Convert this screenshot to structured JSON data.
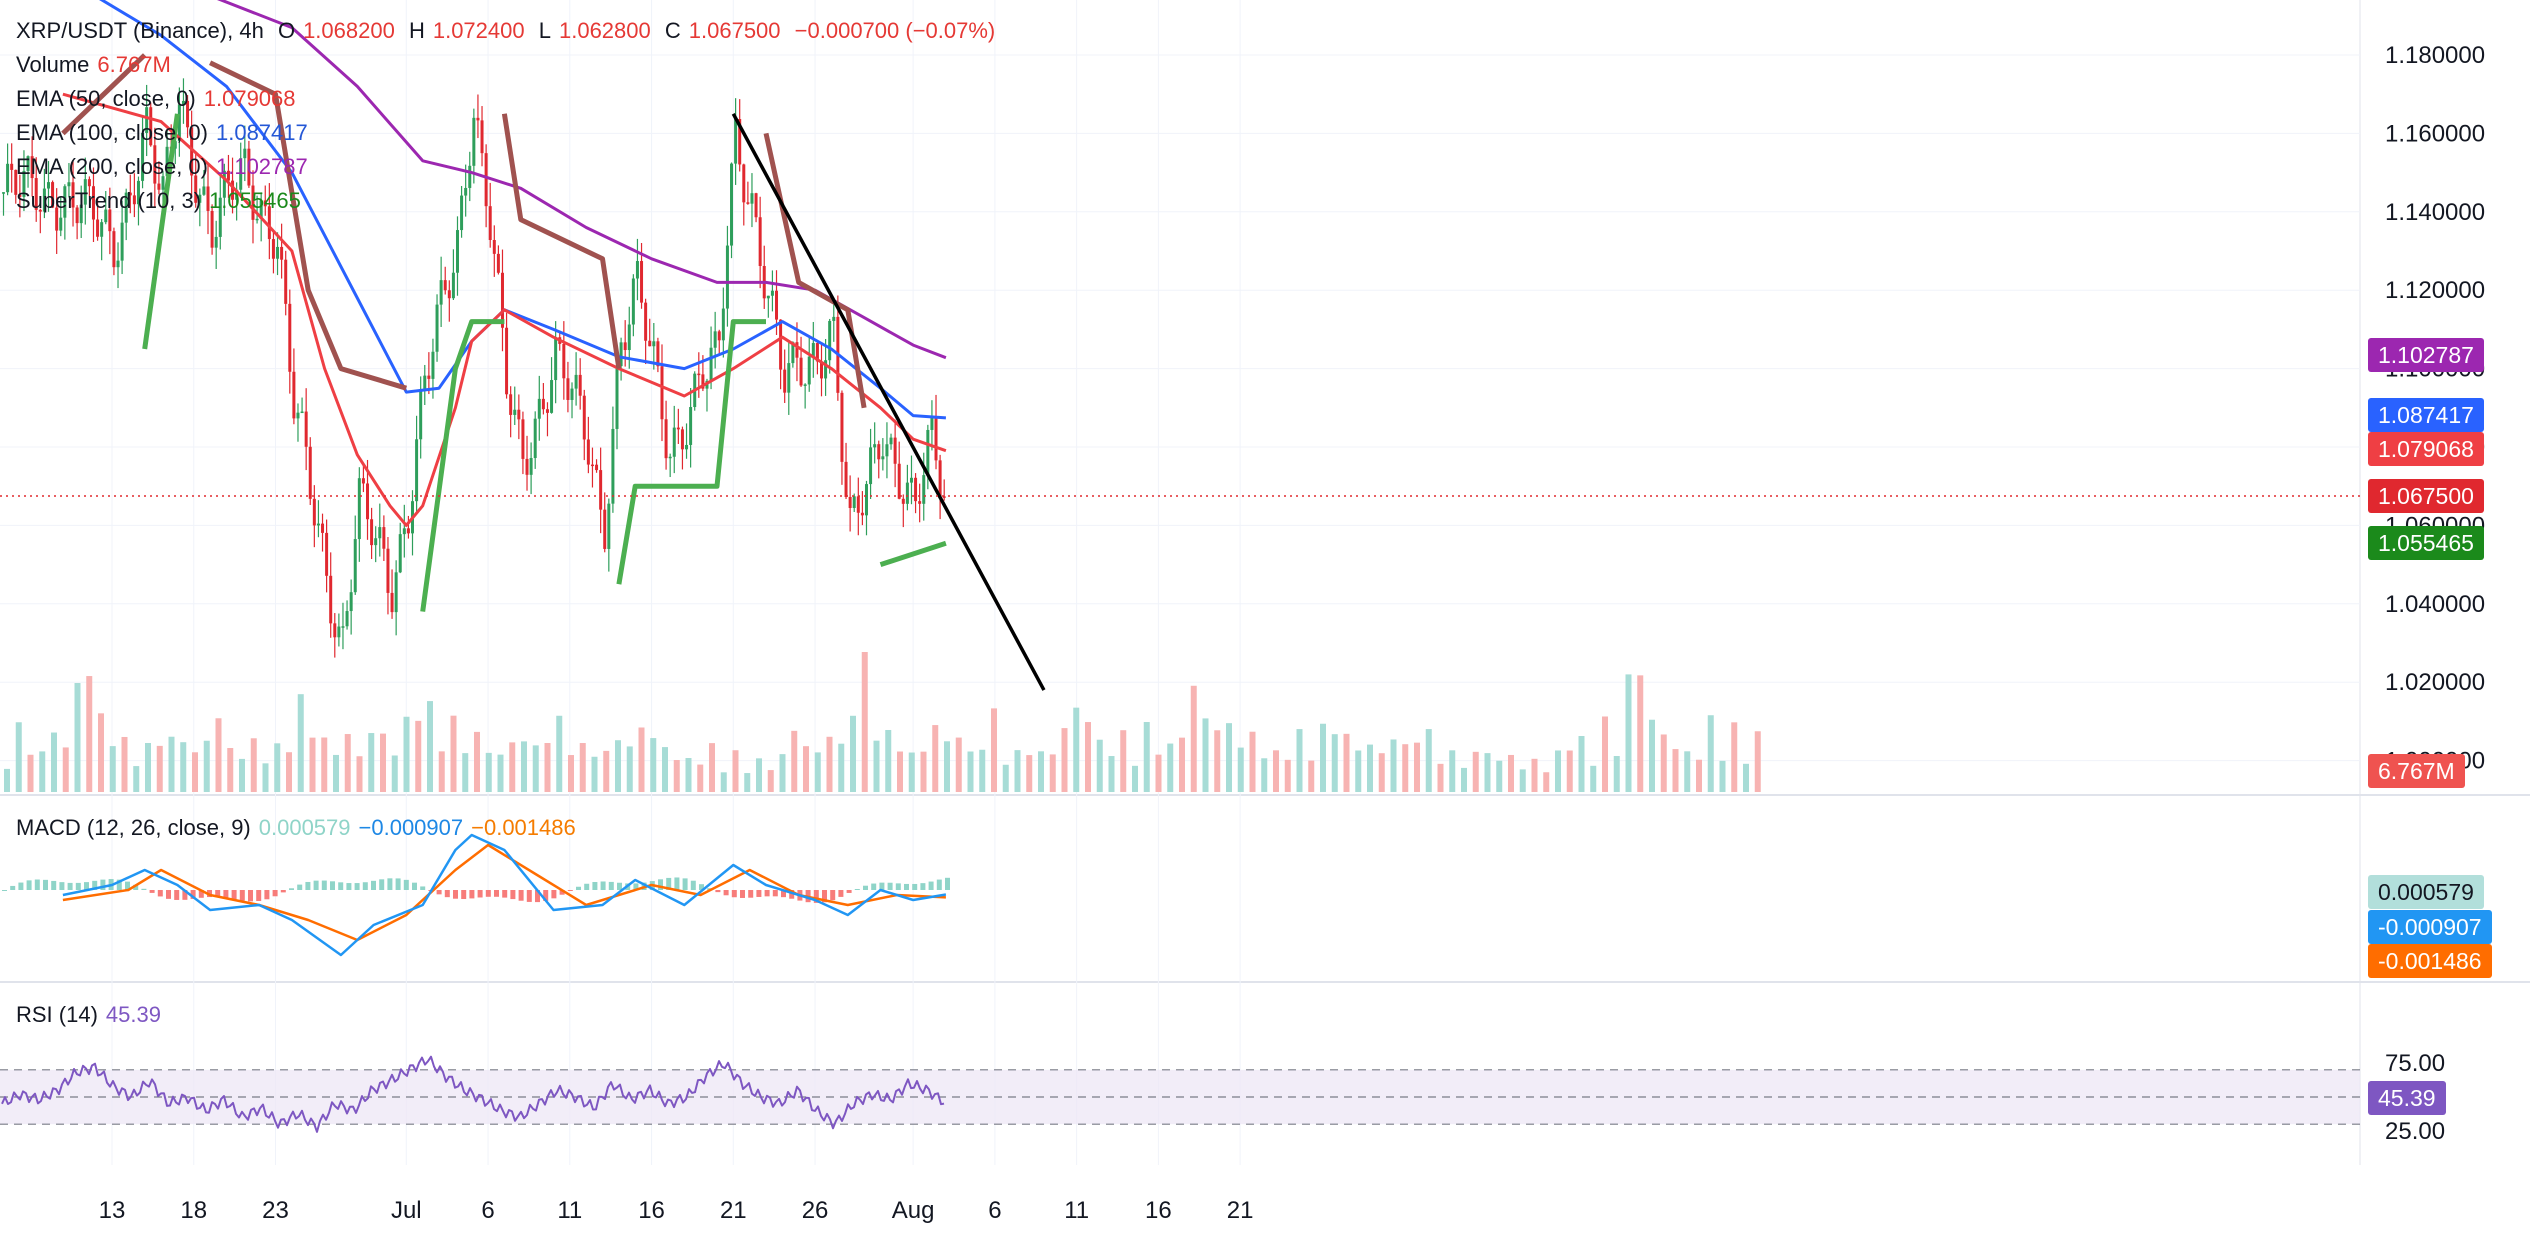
{
  "header": {
    "symbol": "XRP/USDT (Binance), 4h",
    "open_label": "O",
    "open": "1.068200",
    "high_label": "H",
    "high": "1.072400",
    "low_label": "L",
    "low": "1.062800",
    "close_label": "C",
    "close": "1.067500",
    "change": "−0.000700 (−0.07%)"
  },
  "indicators": {
    "volume": {
      "label": "Volume",
      "value": "6.767M"
    },
    "ema50": {
      "label": "EMA (50, close, 0)",
      "value": "1.079068"
    },
    "ema100": {
      "label": "EMA (100, close, 0)",
      "value": "1.087417"
    },
    "ema200": {
      "label": "EMA (200, close, 0)",
      "value": "1.102787"
    },
    "supertrend": {
      "label": "SuperTrend (10, 3)",
      "value": "1.055465"
    },
    "macd": {
      "label": "MACD (12, 26, close, 9)",
      "hist": "0.000579",
      "macd": "−0.000907",
      "signal": "−0.001486"
    },
    "rsi": {
      "label": "RSI (14)",
      "value": "45.39"
    }
  },
  "badges": {
    "ema200": "1.102787",
    "ema100": "1.087417",
    "ema50": "1.079068",
    "last": "1.067500",
    "supertrend": "1.055465",
    "volume": "6.767M",
    "macd_hist": "0.000579",
    "macd": "-0.000907",
    "signal": "-0.001486",
    "rsi": "45.39"
  },
  "colors": {
    "up": "#26a69a",
    "down": "#ef5350",
    "candle_up": "#2e9e5b",
    "candle_down": "#e0282f",
    "ema50": "#ef3f44",
    "ema100": "#2962ff",
    "ema200": "#9c27b0",
    "supertrend_up": "#4caf50",
    "supertrend_down": "#a0524f",
    "macd": "#2196f3",
    "signal": "#ff6d00",
    "rsi": "#7e57c2"
  },
  "chart_data": [
    {
      "type": "line",
      "title": "XRP/USDT (Binance), 4h",
      "x_tick_labels": [
        "13",
        "18",
        "23",
        "Jul",
        "6",
        "11",
        "16",
        "21",
        "26",
        "Aug",
        "6",
        "11",
        "16",
        "21"
      ],
      "y_tick_labels": [
        "1.180000",
        "1.160000",
        "1.140000",
        "1.120000",
        "1.100000",
        "1.080000",
        "1.060000",
        "1.040000",
        "1.020000",
        "1.000000"
      ],
      "ylim": [
        1.0,
        1.18
      ],
      "key_prices": [
        {
          "t": "Jun 10",
          "price": 1.145
        },
        {
          "t": "Jun 13",
          "price": 1.132
        },
        {
          "t": "Jun 15",
          "price": 1.16
        },
        {
          "t": "Jun 16",
          "price": 1.14
        },
        {
          "t": "Jun 17",
          "price": 1.17
        },
        {
          "t": "Jun 19",
          "price": 1.135
        },
        {
          "t": "Jun 21",
          "price": 1.15
        },
        {
          "t": "Jun 23",
          "price": 1.135
        },
        {
          "t": "Jun 24",
          "price": 1.09
        },
        {
          "t": "Jun 26",
          "price": 1.05
        },
        {
          "t": "Jun 27",
          "price": 1.03
        },
        {
          "t": "Jun 28",
          "price": 1.065
        },
        {
          "t": "Jun 30",
          "price": 1.045
        },
        {
          "t": "Jul 1",
          "price": 1.065
        },
        {
          "t": "Jul 2",
          "price": 1.095
        },
        {
          "t": "Jul 4",
          "price": 1.13
        },
        {
          "t": "Jul 5",
          "price": 1.17
        },
        {
          "t": "Jul 6",
          "price": 1.14
        },
        {
          "t": "Jul 7",
          "price": 1.095
        },
        {
          "t": "Jul 8",
          "price": 1.075
        },
        {
          "t": "Jul 10",
          "price": 1.105
        },
        {
          "t": "Jul 12",
          "price": 1.08
        },
        {
          "t": "Jul 13",
          "price": 1.06
        },
        {
          "t": "Jul 14",
          "price": 1.108
        },
        {
          "t": "Jul 15",
          "price": 1.12
        },
        {
          "t": "Jul 16",
          "price": 1.1
        },
        {
          "t": "Jul 17",
          "price": 1.08
        },
        {
          "t": "Jul 19",
          "price": 1.098
        },
        {
          "t": "Jul 20",
          "price": 1.1
        },
        {
          "t": "Jul 21",
          "price": 1.16
        },
        {
          "t": "Jul 22",
          "price": 1.145
        },
        {
          "t": "Jul 23",
          "price": 1.12
        },
        {
          "t": "Jul 24",
          "price": 1.095
        },
        {
          "t": "Jul 26",
          "price": 1.105
        },
        {
          "t": "Jul 27",
          "price": 1.112
        },
        {
          "t": "Jul 28",
          "price": 1.055
        },
        {
          "t": "Jul 29",
          "price": 1.068
        },
        {
          "t": "Jul 30",
          "price": 1.087
        },
        {
          "t": "Jul 31",
          "price": 1.075
        },
        {
          "t": "Aug 1",
          "price": 1.062
        },
        {
          "t": "Aug 2",
          "price": 1.08
        },
        {
          "t": "Aug 3",
          "price": 1.0675
        }
      ],
      "ema50": [
        {
          "t": "Jun 10",
          "v": 1.17
        },
        {
          "t": "Jun 16",
          "v": 1.163
        },
        {
          "t": "Jun 20",
          "v": 1.148
        },
        {
          "t": "Jun 24",
          "v": 1.13
        },
        {
          "t": "Jun 26",
          "v": 1.1
        },
        {
          "t": "Jun 28",
          "v": 1.078
        },
        {
          "t": "Jun 30",
          "v": 1.065
        },
        {
          "t": "Jul 1",
          "v": 1.06
        },
        {
          "t": "Jul 2",
          "v": 1.065
        },
        {
          "t": "Jul 4",
          "v": 1.09
        },
        {
          "t": "Jul 5",
          "v": 1.107
        },
        {
          "t": "Jul 7",
          "v": 1.115
        },
        {
          "t": "Jul 10",
          "v": 1.108
        },
        {
          "t": "Jul 14",
          "v": 1.1
        },
        {
          "t": "Jul 18",
          "v": 1.093
        },
        {
          "t": "Jul 21",
          "v": 1.1
        },
        {
          "t": "Jul 24",
          "v": 1.108
        },
        {
          "t": "Jul 27",
          "v": 1.1
        },
        {
          "t": "Jul 30",
          "v": 1.09
        },
        {
          "t": "Aug 1",
          "v": 1.082
        },
        {
          "t": "Aug 3",
          "v": 1.079068
        }
      ],
      "ema100": [
        {
          "t": "Jun 10",
          "v": 1.2
        },
        {
          "t": "Jun 16",
          "v": 1.185
        },
        {
          "t": "Jun 20",
          "v": 1.172
        },
        {
          "t": "Jun 24",
          "v": 1.15
        },
        {
          "t": "Jun 28",
          "v": 1.118
        },
        {
          "t": "Jul 1",
          "v": 1.094
        },
        {
          "t": "Jul 3",
          "v": 1.095
        },
        {
          "t": "Jul 5",
          "v": 1.107
        },
        {
          "t": "Jul 7",
          "v": 1.115
        },
        {
          "t": "Jul 10",
          "v": 1.11
        },
        {
          "t": "Jul 14",
          "v": 1.103
        },
        {
          "t": "Jul 18",
          "v": 1.1
        },
        {
          "t": "Jul 21",
          "v": 1.105
        },
        {
          "t": "Jul 24",
          "v": 1.112
        },
        {
          "t": "Jul 27",
          "v": 1.105
        },
        {
          "t": "Jul 30",
          "v": 1.095
        },
        {
          "t": "Aug 1",
          "v": 1.088
        },
        {
          "t": "Aug 3",
          "v": 1.087417
        }
      ],
      "ema200": [
        {
          "t": "Jun 16",
          "v": 1.2
        },
        {
          "t": "Jun 24",
          "v": 1.187
        },
        {
          "t": "Jun 28",
          "v": 1.172
        },
        {
          "t": "Jul 2",
          "v": 1.153
        },
        {
          "t": "Jul 5",
          "v": 1.15
        },
        {
          "t": "Jul 8",
          "v": 1.146
        },
        {
          "t": "Jul 12",
          "v": 1.136
        },
        {
          "t": "Jul 16",
          "v": 1.128
        },
        {
          "t": "Jul 20",
          "v": 1.122
        },
        {
          "t": "Jul 23",
          "v": 1.122
        },
        {
          "t": "Jul 26",
          "v": 1.12
        },
        {
          "t": "Jul 29",
          "v": 1.113
        },
        {
          "t": "Aug 1",
          "v": 1.106
        },
        {
          "t": "Aug 3",
          "v": 1.102787
        }
      ],
      "supertrend": [
        {
          "t": "Jun 10",
          "v": 1.16,
          "dir": "down"
        },
        {
          "t": "Jun 15",
          "v": 1.18,
          "dir": "down"
        },
        {
          "t": "Jun 15",
          "v": 1.105,
          "dir": "up"
        },
        {
          "t": "Jun 17",
          "v": 1.165,
          "dir": "up"
        },
        {
          "t": "Jun 19",
          "v": 1.178,
          "dir": "down"
        },
        {
          "t": "Jun 23",
          "v": 1.17,
          "dir": "down"
        },
        {
          "t": "Jun 25",
          "v": 1.12,
          "dir": "down"
        },
        {
          "t": "Jun 27",
          "v": 1.1,
          "dir": "down"
        },
        {
          "t": "Jul 1",
          "v": 1.095,
          "dir": "down"
        },
        {
          "t": "Jul 2",
          "v": 1.038,
          "dir": "up"
        },
        {
          "t": "Jul 4",
          "v": 1.1,
          "dir": "up"
        },
        {
          "t": "Jul 5",
          "v": 1.112,
          "dir": "up"
        },
        {
          "t": "Jul 7",
          "v": 1.112,
          "dir": "up"
        },
        {
          "t": "Jul 7",
          "v": 1.165,
          "dir": "down"
        },
        {
          "t": "Jul 8",
          "v": 1.138,
          "dir": "down"
        },
        {
          "t": "Jul 13",
          "v": 1.128,
          "dir": "down"
        },
        {
          "t": "Jul 14",
          "v": 1.1,
          "dir": "down"
        },
        {
          "t": "Jul 14",
          "v": 1.045,
          "dir": "up"
        },
        {
          "t": "Jul 15",
          "v": 1.07,
          "dir": "up"
        },
        {
          "t": "Jul 20",
          "v": 1.07,
          "dir": "up"
        },
        {
          "t": "Jul 21",
          "v": 1.112,
          "dir": "up"
        },
        {
          "t": "Jul 23",
          "v": 1.112,
          "dir": "up"
        },
        {
          "t": "Jul 23",
          "v": 1.16,
          "dir": "down"
        },
        {
          "t": "Jul 25",
          "v": 1.122,
          "dir": "down"
        },
        {
          "t": "Jul 28",
          "v": 1.115,
          "dir": "down"
        },
        {
          "t": "Jul 29",
          "v": 1.09,
          "dir": "down"
        },
        {
          "t": "Jul 30",
          "v": 1.05,
          "dir": "up"
        },
        {
          "t": "Aug 3",
          "v": 1.055465,
          "dir": "up"
        }
      ],
      "trendline": [
        {
          "t": "Jul 21",
          "v": 1.165
        },
        {
          "t": "Aug 9",
          "v": 1.018
        }
      ]
    },
    {
      "type": "bar",
      "title": "Volume",
      "values_relative": [
        0.3,
        0.5,
        0.4,
        0.3,
        0.55,
        0.35,
        0.9,
        1.0,
        0.6,
        0.45,
        0.4,
        0.3,
        0.35,
        0.55,
        0.4,
        0.5,
        0.3,
        0.45,
        0.6,
        0.35,
        0.3,
        0.4,
        0.3,
        0.35,
        0.5,
        0.7,
        0.6,
        0.4,
        0.35,
        0.45,
        0.3,
        0.5,
        0.45,
        0.35,
        0.55,
        0.8,
        0.65,
        0.5,
        0.55,
        0.4,
        0.45,
        0.35,
        0.3,
        0.4,
        0.45,
        0.35,
        0.5,
        0.55,
        0.45,
        0.35,
        0.4,
        0.3,
        0.5,
        0.35,
        0.55,
        0.45,
        0.35,
        0.3,
        0.25,
        0.3,
        0.35,
        0.25,
        0.3,
        0.2,
        0.25,
        0.2
      ]
    },
    {
      "type": "line",
      "title": "MACD (12, 26, close, 9)",
      "macd": [
        {
          "t": "Jun 10",
          "v": -0.001
        },
        {
          "t": "Jun 13",
          "v": 0.001
        },
        {
          "t": "Jun 15",
          "v": 0.004
        },
        {
          "t": "Jun 17",
          "v": 0.001
        },
        {
          "t": "Jun 19",
          "v": -0.004
        },
        {
          "t": "Jun 22",
          "v": -0.003
        },
        {
          "t": "Jun 24",
          "v": -0.006
        },
        {
          "t": "Jun 27",
          "v": -0.013
        },
        {
          "t": "Jun 29",
          "v": -0.007
        },
        {
          "t": "Jul 2",
          "v": -0.003
        },
        {
          "t": "Jul 4",
          "v": 0.008
        },
        {
          "t": "Jul 5",
          "v": 0.011
        },
        {
          "t": "Jul 7",
          "v": 0.008
        },
        {
          "t": "Jul 10",
          "v": -0.004
        },
        {
          "t": "Jul 13",
          "v": -0.003
        },
        {
          "t": "Jul 15",
          "v": 0.002
        },
        {
          "t": "Jul 18",
          "v": -0.003
        },
        {
          "t": "Jul 21",
          "v": 0.005
        },
        {
          "t": "Jul 23",
          "v": 0.001
        },
        {
          "t": "Jul 26",
          "v": -0.002
        },
        {
          "t": "Jul 28",
          "v": -0.005
        },
        {
          "t": "Jul 30",
          "v": 0.0
        },
        {
          "t": "Aug 1",
          "v": -0.002
        },
        {
          "t": "Aug 3",
          "v": -0.000907
        }
      ],
      "signal": [
        {
          "t": "Jun 10",
          "v": -0.002
        },
        {
          "t": "Jun 14",
          "v": 0.0
        },
        {
          "t": "Jun 16",
          "v": 0.004
        },
        {
          "t": "Jun 19",
          "v": -0.001
        },
        {
          "t": "Jun 22",
          "v": -0.003
        },
        {
          "t": "Jun 25",
          "v": -0.006
        },
        {
          "t": "Jun 28",
          "v": -0.01
        },
        {
          "t": "Jul 1",
          "v": -0.005
        },
        {
          "t": "Jul 4",
          "v": 0.004
        },
        {
          "t": "Jul 6",
          "v": 0.009
        },
        {
          "t": "Jul 9",
          "v": 0.003
        },
        {
          "t": "Jul 12",
          "v": -0.003
        },
        {
          "t": "Jul 16",
          "v": 0.001
        },
        {
          "t": "Jul 19",
          "v": -0.001
        },
        {
          "t": "Jul 22",
          "v": 0.004
        },
        {
          "t": "Jul 25",
          "v": -0.001
        },
        {
          "t": "Jul 28",
          "v": -0.003
        },
        {
          "t": "Jul 31",
          "v": -0.001
        },
        {
          "t": "Aug 3",
          "v": -0.001486
        }
      ]
    },
    {
      "type": "line",
      "title": "RSI (14)",
      "ylim": [
        0,
        100
      ],
      "levels": [
        70,
        50,
        30
      ],
      "values": [
        45,
        52,
        48,
        55,
        68,
        72,
        58,
        50,
        62,
        45,
        50,
        40,
        48,
        35,
        42,
        30,
        38,
        28,
        45,
        40,
        55,
        62,
        70,
        78,
        65,
        55,
        48,
        40,
        35,
        45,
        55,
        50,
        42,
        60,
        48,
        55,
        45,
        50,
        65,
        75,
        60,
        50,
        45,
        55,
        40,
        30,
        45,
        52,
        48,
        60,
        55,
        45.39
      ]
    }
  ]
}
